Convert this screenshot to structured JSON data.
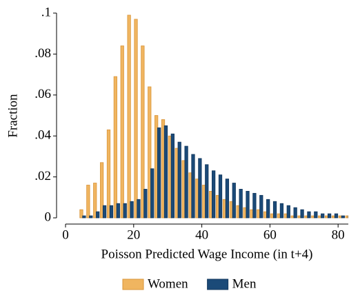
{
  "chart_data": {
    "type": "histogram",
    "xlabel": "Poisson Predicted Wage Income (in t+4)",
    "ylabel": "Fraction",
    "bins": [
      4,
      6,
      8,
      10,
      12,
      14,
      16,
      18,
      20,
      22,
      24,
      26,
      28,
      30,
      32,
      34,
      36,
      38,
      40,
      42,
      44,
      46,
      48,
      50,
      52,
      54,
      56,
      58,
      60,
      62,
      64,
      66,
      68,
      70,
      72,
      74,
      76,
      78,
      80,
      82,
      84
    ],
    "series": [
      {
        "name": "Women",
        "color": "#f0b560",
        "values": [
          0.004,
          0.016,
          0.017,
          0.027,
          0.043,
          0.069,
          0.084,
          0.099,
          0.097,
          0.084,
          0.064,
          0.05,
          0.048,
          0.04,
          0.034,
          0.028,
          0.022,
          0.019,
          0.016,
          0.013,
          0.011,
          0.009,
          0.008,
          0.006,
          0.005,
          0.004,
          0.004,
          0.003,
          0.002,
          0.002,
          0.002,
          0.001,
          0.001,
          0.001,
          0.001,
          0.001,
          0.001,
          0.001,
          0.001,
          0.001
        ]
      },
      {
        "name": "Men",
        "color": "#1b4a78",
        "values": [
          0.001,
          0.001,
          0.003,
          0.006,
          0.006,
          0.007,
          0.007,
          0.008,
          0.009,
          0.014,
          0.024,
          0.044,
          0.045,
          0.041,
          0.037,
          0.035,
          0.031,
          0.029,
          0.026,
          0.023,
          0.021,
          0.019,
          0.017,
          0.014,
          0.013,
          0.012,
          0.011,
          0.009,
          0.008,
          0.007,
          0.006,
          0.005,
          0.004,
          0.003,
          0.003,
          0.002,
          0.002,
          0.002,
          0.001,
          0.001
        ]
      }
    ],
    "xlim": [
      0,
      83
    ],
    "ylim": [
      0,
      0.1
    ],
    "xticks": [
      0,
      20,
      40,
      60,
      80
    ],
    "yticks": [
      {
        "value": 0,
        "label": "0"
      },
      {
        "value": 0.02,
        "label": ".02"
      },
      {
        "value": 0.04,
        "label": ".04"
      },
      {
        "value": 0.06,
        "label": ".06"
      },
      {
        "value": 0.08,
        "label": ".08"
      },
      {
        "value": 0.1,
        "label": ".1"
      }
    ],
    "legend": "bottom"
  }
}
